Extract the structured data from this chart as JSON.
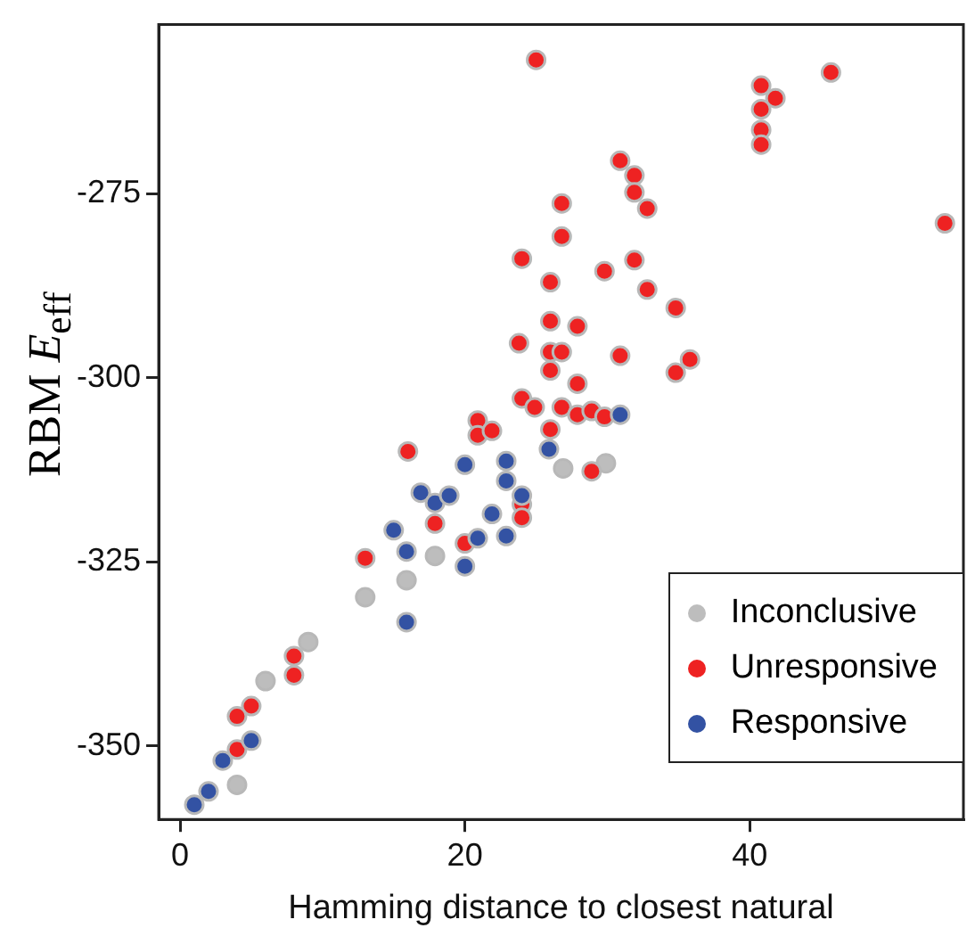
{
  "chart_data": {
    "type": "scatter",
    "xlabel": "Hamming distance to closest natural",
    "ylabel": "RBM E$_{eff}$",
    "xlim": [
      -1.5,
      55
    ],
    "ylim": [
      -360,
      -252
    ],
    "xticks": [
      0,
      20,
      40
    ],
    "yticks": [
      -350,
      -325,
      -300,
      -275
    ],
    "grid": false,
    "legend": "bottom right",
    "marker": "circle",
    "series": [
      {
        "name": "Inconclusive",
        "color": "#bdbdbd",
        "x": [
          17.9,
          15.9,
          13,
          9,
          6,
          4,
          26.9,
          29.9
        ],
        "values": [
          -324.2,
          -327.5,
          -329.8,
          -335.9,
          -341.2,
          -355.3,
          -312.3,
          -311.6
        ]
      },
      {
        "name": "Unresponsive",
        "color": "#ee2222",
        "x": [
          25,
          45.7,
          40.8,
          41.8,
          40.8,
          40.8,
          40.8,
          53.7,
          30.9,
          31.9,
          31.9,
          32.8,
          26.8,
          26.8,
          24,
          31.9,
          29.8,
          26,
          32.8,
          34.8,
          26,
          27.9,
          23.8,
          26,
          26.8,
          30.9,
          35.8,
          26,
          34.8,
          27.9,
          24,
          24.9,
          26.8,
          27.9,
          28.9,
          29.8,
          26,
          28.9,
          16,
          20.9,
          20.9,
          21.9,
          24,
          24,
          17.9,
          20,
          13,
          8,
          8,
          5,
          4,
          4
        ],
        "values": [
          -256.8,
          -258.5,
          -260.3,
          -262,
          -263.5,
          -266.3,
          -268.3,
          -279,
          -270.5,
          -272.5,
          -274.8,
          -277,
          -276.3,
          -280.8,
          -283.8,
          -284,
          -285.5,
          -287,
          -288,
          -290.5,
          -292.3,
          -293,
          -295.3,
          -296.5,
          -296.5,
          -297,
          -297.5,
          -299,
          -299.3,
          -300.8,
          -302.8,
          -304,
          -304,
          -305,
          -304.5,
          -305.3,
          -307,
          -312.7,
          -310,
          -305.8,
          -307.8,
          -307.2,
          -317.2,
          -319,
          -319.8,
          -322.5,
          -324.5,
          -337.8,
          -340.4,
          -344.6,
          -346,
          -350.5
        ]
      },
      {
        "name": "Responsive",
        "color": "#3352a3",
        "x": [
          30.9,
          25.9,
          20,
          22.9,
          22.9,
          24,
          16.9,
          17.9,
          18.9,
          15,
          15.9,
          21.9,
          20.9,
          22.9,
          20,
          15.9,
          5,
          3,
          2,
          1
        ],
        "values": [
          -305,
          -309.7,
          -311.8,
          -311.3,
          -314,
          -316,
          -315.6,
          -317,
          -316,
          -320.7,
          -323.6,
          -318.5,
          -321.8,
          -321.5,
          -325.6,
          -333.2,
          -349.3,
          -352,
          -356.2,
          -358
        ]
      }
    ]
  }
}
